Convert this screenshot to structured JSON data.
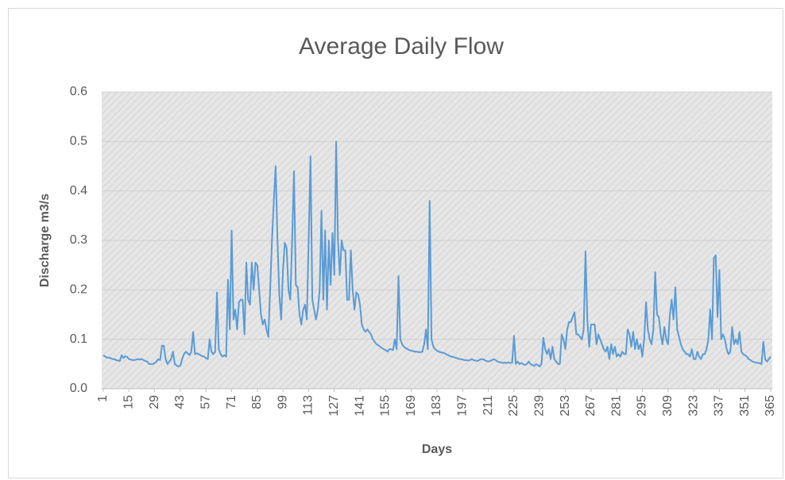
{
  "chart_data": {
    "type": "line",
    "title": "Average Daily Flow",
    "xlabel": "Days",
    "ylabel": "Discharge m3/s",
    "x": [
      1,
      2,
      3,
      4,
      5,
      6,
      7,
      8,
      9,
      10,
      11,
      12,
      13,
      14,
      15,
      16,
      17,
      18,
      19,
      20,
      21,
      22,
      23,
      24,
      25,
      26,
      27,
      28,
      29,
      30,
      31,
      32,
      33,
      34,
      35,
      36,
      37,
      38,
      39,
      40,
      41,
      42,
      43,
      44,
      45,
      46,
      47,
      48,
      49,
      50,
      51,
      52,
      53,
      54,
      55,
      56,
      57,
      58,
      59,
      60,
      61,
      62,
      63,
      64,
      65,
      66,
      67,
      68,
      69,
      70,
      71,
      72,
      73,
      74,
      75,
      76,
      77,
      78,
      79,
      80,
      81,
      82,
      83,
      84,
      85,
      86,
      87,
      88,
      89,
      90,
      91,
      92,
      93,
      94,
      95,
      96,
      97,
      98,
      99,
      100,
      101,
      102,
      103,
      104,
      105,
      106,
      107,
      108,
      109,
      110,
      111,
      112,
      113,
      114,
      115,
      116,
      117,
      118,
      119,
      120,
      121,
      122,
      123,
      124,
      125,
      126,
      127,
      128,
      129,
      130,
      131,
      132,
      133,
      134,
      135,
      136,
      137,
      138,
      139,
      140,
      141,
      142,
      143,
      144,
      145,
      146,
      147,
      148,
      149,
      150,
      151,
      152,
      153,
      154,
      155,
      156,
      157,
      158,
      159,
      160,
      161,
      162,
      163,
      164,
      165,
      166,
      167,
      168,
      169,
      170,
      171,
      172,
      173,
      174,
      175,
      176,
      177,
      178,
      179,
      180,
      181,
      182,
      183,
      184,
      185,
      186,
      187,
      188,
      189,
      190,
      191,
      192,
      193,
      194,
      195,
      196,
      197,
      198,
      199,
      200,
      201,
      202,
      203,
      204,
      205,
      206,
      207,
      208,
      209,
      210,
      211,
      212,
      213,
      214,
      215,
      216,
      217,
      218,
      219,
      220,
      221,
      222,
      223,
      224,
      225,
      226,
      227,
      228,
      229,
      230,
      231,
      232,
      233,
      234,
      235,
      236,
      237,
      238,
      239,
      240,
      241,
      242,
      243,
      244,
      245,
      246,
      247,
      248,
      249,
      250,
      251,
      252,
      253,
      254,
      255,
      256,
      257,
      258,
      259,
      260,
      261,
      262,
      263,
      264,
      265,
      266,
      267,
      268,
      269,
      270,
      271,
      272,
      273,
      274,
      275,
      276,
      277,
      278,
      279,
      280,
      281,
      282,
      283,
      284,
      285,
      286,
      287,
      288,
      289,
      290,
      291,
      292,
      293,
      294,
      295,
      296,
      297,
      298,
      299,
      300,
      301,
      302,
      303,
      304,
      305,
      306,
      307,
      308,
      309,
      310,
      311,
      312,
      313,
      314,
      315,
      316,
      317,
      318,
      319,
      320,
      321,
      322,
      323,
      324,
      325,
      326,
      327,
      328,
      329,
      330,
      331,
      332,
      333,
      334,
      335,
      336,
      337,
      338,
      339,
      340,
      341,
      342,
      343,
      344,
      345,
      346,
      347,
      348,
      349,
      350,
      351,
      352,
      353,
      354,
      355,
      356,
      357,
      358,
      359,
      360,
      361,
      362,
      363,
      364,
      365
    ],
    "values": [
      0.068,
      0.065,
      0.063,
      0.063,
      0.062,
      0.06,
      0.06,
      0.058,
      0.057,
      0.056,
      0.068,
      0.062,
      0.066,
      0.064,
      0.06,
      0.059,
      0.058,
      0.058,
      0.059,
      0.06,
      0.059,
      0.06,
      0.058,
      0.056,
      0.055,
      0.05,
      0.05,
      0.05,
      0.052,
      0.055,
      0.06,
      0.058,
      0.087,
      0.087,
      0.06,
      0.05,
      0.055,
      0.06,
      0.075,
      0.05,
      0.047,
      0.045,
      0.047,
      0.06,
      0.07,
      0.075,
      0.072,
      0.068,
      0.075,
      0.115,
      0.07,
      0.072,
      0.07,
      0.068,
      0.066,
      0.065,
      0.062,
      0.06,
      0.1,
      0.075,
      0.07,
      0.075,
      0.195,
      0.08,
      0.07,
      0.065,
      0.068,
      0.065,
      0.22,
      0.12,
      0.32,
      0.14,
      0.16,
      0.12,
      0.175,
      0.18,
      0.18,
      0.11,
      0.255,
      0.18,
      0.17,
      0.255,
      0.2,
      0.255,
      0.25,
      0.2,
      0.15,
      0.13,
      0.14,
      0.12,
      0.105,
      0.2,
      0.3,
      0.38,
      0.45,
      0.3,
      0.19,
      0.14,
      0.24,
      0.295,
      0.285,
      0.2,
      0.18,
      0.3,
      0.44,
      0.21,
      0.205,
      0.15,
      0.13,
      0.16,
      0.17,
      0.14,
      0.3,
      0.47,
      0.18,
      0.16,
      0.14,
      0.16,
      0.2,
      0.36,
      0.18,
      0.32,
      0.16,
      0.3,
      0.21,
      0.315,
      0.23,
      0.5,
      0.3,
      0.23,
      0.3,
      0.28,
      0.28,
      0.18,
      0.18,
      0.28,
      0.2,
      0.16,
      0.195,
      0.19,
      0.17,
      0.13,
      0.12,
      0.115,
      0.12,
      0.115,
      0.11,
      0.1,
      0.095,
      0.09,
      0.088,
      0.085,
      0.082,
      0.08,
      0.078,
      0.075,
      0.08,
      0.08,
      0.078,
      0.1,
      0.08,
      0.228,
      0.1,
      0.09,
      0.085,
      0.082,
      0.08,
      0.078,
      0.077,
      0.076,
      0.075,
      0.075,
      0.074,
      0.074,
      0.075,
      0.09,
      0.12,
      0.08,
      0.38,
      0.1,
      0.085,
      0.08,
      0.077,
      0.075,
      0.074,
      0.073,
      0.072,
      0.07,
      0.068,
      0.066,
      0.065,
      0.064,
      0.063,
      0.062,
      0.06,
      0.06,
      0.059,
      0.058,
      0.058,
      0.057,
      0.058,
      0.06,
      0.058,
      0.057,
      0.056,
      0.058,
      0.06,
      0.06,
      0.058,
      0.056,
      0.055,
      0.056,
      0.058,
      0.06,
      0.058,
      0.055,
      0.054,
      0.053,
      0.052,
      0.053,
      0.052,
      0.053,
      0.052,
      0.053,
      0.107,
      0.05,
      0.055,
      0.05,
      0.052,
      0.05,
      0.048,
      0.05,
      0.055,
      0.05,
      0.048,
      0.046,
      0.05,
      0.048,
      0.045,
      0.05,
      0.103,
      0.08,
      0.07,
      0.08,
      0.06,
      0.085,
      0.06,
      0.055,
      0.05,
      0.05,
      0.11,
      0.1,
      0.08,
      0.12,
      0.135,
      0.135,
      0.145,
      0.155,
      0.11,
      0.11,
      0.105,
      0.1,
      0.12,
      0.278,
      0.14,
      0.085,
      0.13,
      0.13,
      0.13,
      0.09,
      0.11,
      0.1,
      0.09,
      0.08,
      0.075,
      0.085,
      0.06,
      0.09,
      0.07,
      0.085,
      0.065,
      0.07,
      0.065,
      0.075,
      0.07,
      0.07,
      0.12,
      0.11,
      0.085,
      0.115,
      0.08,
      0.1,
      0.08,
      0.09,
      0.065,
      0.1,
      0.175,
      0.12,
      0.1,
      0.09,
      0.12,
      0.236,
      0.15,
      0.145,
      0.11,
      0.09,
      0.125,
      0.1,
      0.09,
      0.15,
      0.18,
      0.14,
      0.205,
      0.12,
      0.105,
      0.09,
      0.08,
      0.075,
      0.07,
      0.07,
      0.065,
      0.08,
      0.06,
      0.06,
      0.075,
      0.065,
      0.06,
      0.07,
      0.07,
      0.08,
      0.1,
      0.16,
      0.1,
      0.265,
      0.27,
      0.145,
      0.24,
      0.1,
      0.11,
      0.1,
      0.08,
      0.07,
      0.075,
      0.125,
      0.09,
      0.1,
      0.09,
      0.115,
      0.075,
      0.07,
      0.068,
      0.065,
      0.06,
      0.058,
      0.055,
      0.054,
      0.053,
      0.052,
      0.052,
      0.05,
      0.095,
      0.06,
      0.055,
      0.06,
      0.065
    ],
    "color": "#5b9bd5",
    "xlim": [
      1,
      365
    ],
    "xticks": [
      1,
      15,
      29,
      43,
      57,
      71,
      85,
      99,
      113,
      127,
      141,
      155,
      169,
      183,
      197,
      211,
      225,
      239,
      253,
      267,
      281,
      295,
      309,
      323,
      337,
      351,
      365
    ],
    "ylim": [
      0,
      0.6
    ],
    "yticks": [
      {
        "value": 0,
        "label": "0.0"
      },
      0.1,
      0.2,
      0.3,
      0.4,
      0.5,
      0.6
    ],
    "grid": true
  }
}
